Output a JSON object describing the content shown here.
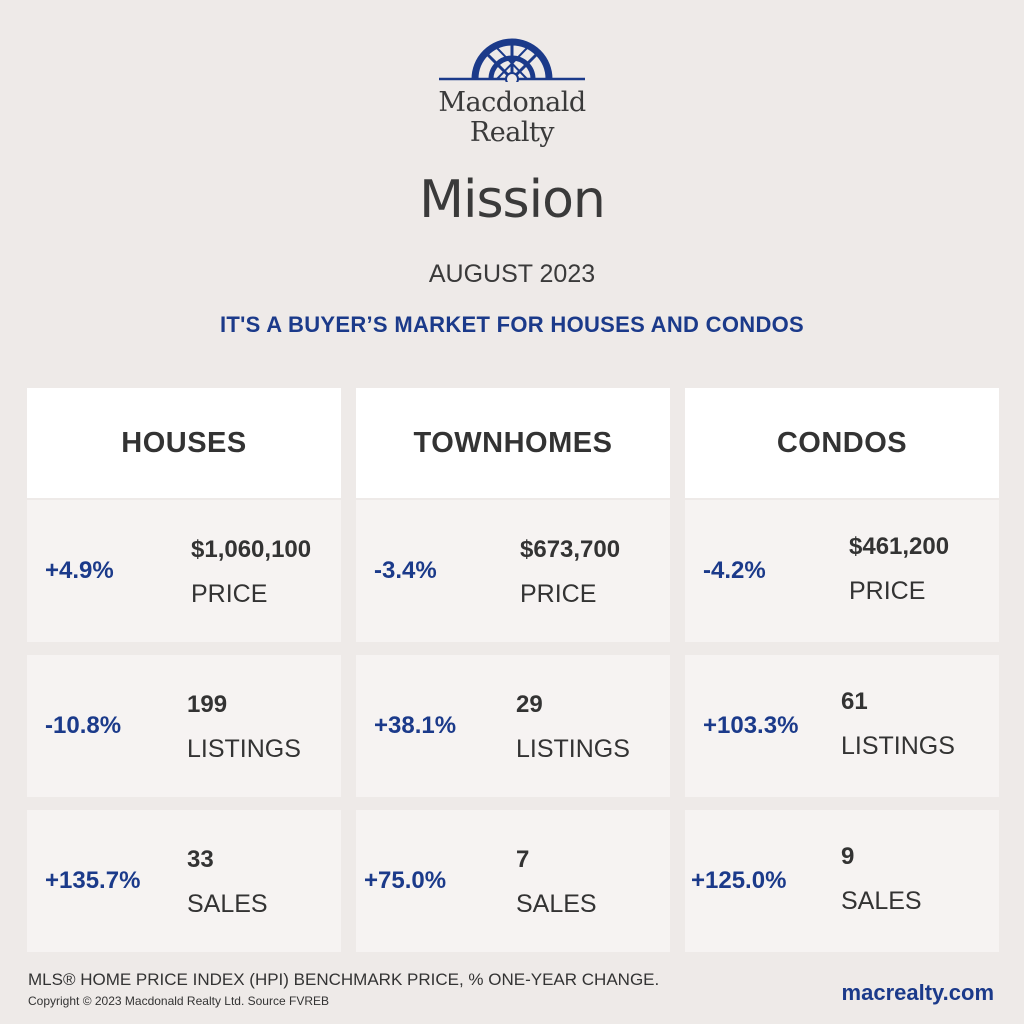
{
  "brand": {
    "line1": "Macdonald",
    "line2": "Realty",
    "accent": "#1b3a8a"
  },
  "city": "Mission",
  "period": "AUGUST 2023",
  "headline": "IT'S A BUYER’S MARKET FOR HOUSES AND CONDOS",
  "columns": [
    {
      "title": "HOUSES",
      "price": {
        "change": "+4.9%",
        "value": "$1,060,100",
        "label": "PRICE"
      },
      "listings": {
        "change": "-10.8%",
        "value": "199",
        "label": "LISTINGS"
      },
      "sales": {
        "change": "+135.7%",
        "value": "33",
        "label": "SALES"
      }
    },
    {
      "title": "TOWNHOMES",
      "price": {
        "change": "-3.4%",
        "value": "$673,700",
        "label": "PRICE"
      },
      "listings": {
        "change": "+38.1%",
        "value": "29",
        "label": "LISTINGS"
      },
      "sales": {
        "change": "+75.0%",
        "value": "7",
        "label": "SALES"
      }
    },
    {
      "title": "CONDOS",
      "price": {
        "change": "-4.2%",
        "value": "$461,200",
        "label": "PRICE"
      },
      "listings": {
        "change": "+103.3%",
        "value": "61",
        "label": "LISTINGS"
      },
      "sales": {
        "change": "+125.0%",
        "value": "9",
        "label": "SALES"
      }
    }
  ],
  "footer": {
    "note": "MLS® HOME PRICE INDEX (HPI) BENCHMARK PRICE, % ONE-YEAR CHANGE.",
    "copyright": "Copyright © 2023 Macdonald Realty Ltd. Source FVREB",
    "website": "macrealty.com"
  }
}
